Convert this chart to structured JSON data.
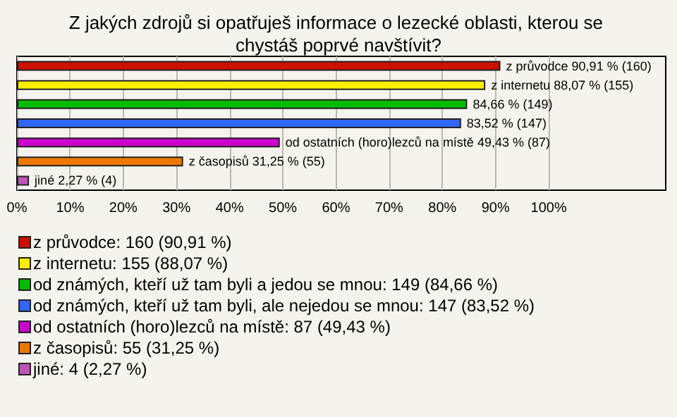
{
  "chart_data": {
    "type": "bar",
    "orientation": "horizontal",
    "title": "Z jakých zdrojů si opatřuješ informace o lezecké oblasti, kterou se chystáš poprvé navštívit?",
    "categories": [
      null,
      null,
      null,
      null,
      null,
      null,
      null
    ],
    "series": [
      {
        "name": "z průvodce: 160 (90,91 %)",
        "color": "#cc1100",
        "values": [
          90.91,
          null,
          null,
          null,
          null,
          null,
          null
        ],
        "value_labels": [
          "z průvodce 90,91 % (160)",
          null,
          null,
          null,
          null,
          null,
          null
        ]
      },
      {
        "name": "z internetu: 155 (88,07 %)",
        "color": "#ffee00",
        "values": [
          null,
          88.07,
          null,
          null,
          null,
          null,
          null
        ],
        "value_labels": [
          null,
          "z internetu 88,07 % (155)",
          null,
          null,
          null,
          null,
          null
        ]
      },
      {
        "name": "od známých, kteří už tam byli a jedou se mnou: 149 (84,66 %)",
        "color": "#00bb00",
        "values": [
          null,
          null,
          84.66,
          null,
          null,
          null,
          null
        ],
        "value_labels": [
          null,
          null,
          "84,66 % (149)",
          null,
          null,
          null,
          null
        ]
      },
      {
        "name": "od známých, kteří už tam byli, ale nejedou se mnou: 147 (83,52 %)",
        "color": "#3366ff",
        "values": [
          null,
          null,
          null,
          83.52,
          null,
          null,
          null
        ],
        "value_labels": [
          null,
          null,
          null,
          "83,52 % (147)",
          null,
          null,
          null
        ]
      },
      {
        "name": "od ostatních (horo)lezců na místě: 87 (49,43 %)",
        "color": "#cc00cc",
        "values": [
          null,
          null,
          null,
          null,
          49.43,
          null,
          null
        ],
        "value_labels": [
          null,
          null,
          null,
          null,
          "od ostatních (horo)lezců na místě 49,43 % (87)",
          null,
          null
        ]
      },
      {
        "name": "z časopisů: 55 (31,25 %)",
        "color": "#ee7700",
        "values": [
          null,
          null,
          null,
          null,
          null,
          31.25,
          null
        ],
        "value_labels": [
          null,
          null,
          null,
          null,
          null,
          "z časopisů 31,25 % (55)",
          null
        ]
      },
      {
        "name": "jiné: 4 (2,27 %)",
        "color": "#bb55bb",
        "values": [
          null,
          null,
          null,
          null,
          null,
          null,
          2.27
        ],
        "value_labels": [
          null,
          null,
          null,
          null,
          null,
          null,
          "jiné 2,27 % (4)"
        ]
      }
    ],
    "xlim": [
      0,
      122
    ],
    "xticks": [
      {
        "value": 0,
        "label": "0%"
      },
      {
        "value": 10,
        "label": "10%"
      },
      {
        "value": 20,
        "label": "20%"
      },
      {
        "value": 30,
        "label": "30%"
      },
      {
        "value": 40,
        "label": "40%"
      },
      {
        "value": 50,
        "label": "50%"
      },
      {
        "value": 60,
        "label": "60%"
      },
      {
        "value": 70,
        "label": "70%"
      },
      {
        "value": 80,
        "label": "80%"
      },
      {
        "value": 90,
        "label": "90%"
      },
      {
        "value": 100,
        "label": "100%"
      }
    ],
    "grid": "x",
    "legend": "bottom",
    "tick_labels": "x"
  }
}
